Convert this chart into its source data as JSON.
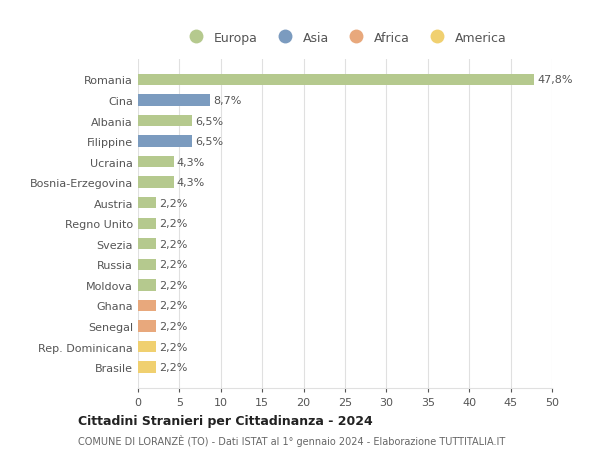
{
  "countries": [
    "Romania",
    "Cina",
    "Albania",
    "Filippine",
    "Ucraina",
    "Bosnia-Erzegovina",
    "Austria",
    "Regno Unito",
    "Svezia",
    "Russia",
    "Moldova",
    "Ghana",
    "Senegal",
    "Rep. Dominicana",
    "Brasile"
  ],
  "values": [
    47.8,
    8.7,
    6.5,
    6.5,
    4.3,
    4.3,
    2.2,
    2.2,
    2.2,
    2.2,
    2.2,
    2.2,
    2.2,
    2.2,
    2.2
  ],
  "labels": [
    "47,8%",
    "8,7%",
    "6,5%",
    "6,5%",
    "4,3%",
    "4,3%",
    "2,2%",
    "2,2%",
    "2,2%",
    "2,2%",
    "2,2%",
    "2,2%",
    "2,2%",
    "2,2%",
    "2,2%"
  ],
  "continents": [
    "Europa",
    "Asia",
    "Europa",
    "Asia",
    "Europa",
    "Europa",
    "Europa",
    "Europa",
    "Europa",
    "Europa",
    "Europa",
    "Africa",
    "Africa",
    "America",
    "America"
  ],
  "colors": {
    "Europa": "#b5c98e",
    "Asia": "#7b9bbf",
    "Africa": "#e8a87c",
    "America": "#f0d070"
  },
  "legend_order": [
    "Europa",
    "Asia",
    "Africa",
    "America"
  ],
  "xlim": [
    0,
    50
  ],
  "xticks": [
    0,
    5,
    10,
    15,
    20,
    25,
    30,
    35,
    40,
    45,
    50
  ],
  "title": "Cittadini Stranieri per Cittadinanza - 2024",
  "subtitle": "COMUNE DI LORANZÈ (TO) - Dati ISTAT al 1° gennaio 2024 - Elaborazione TUTTITALIA.IT",
  "bg_color": "#ffffff",
  "grid_color": "#e0e0e0"
}
